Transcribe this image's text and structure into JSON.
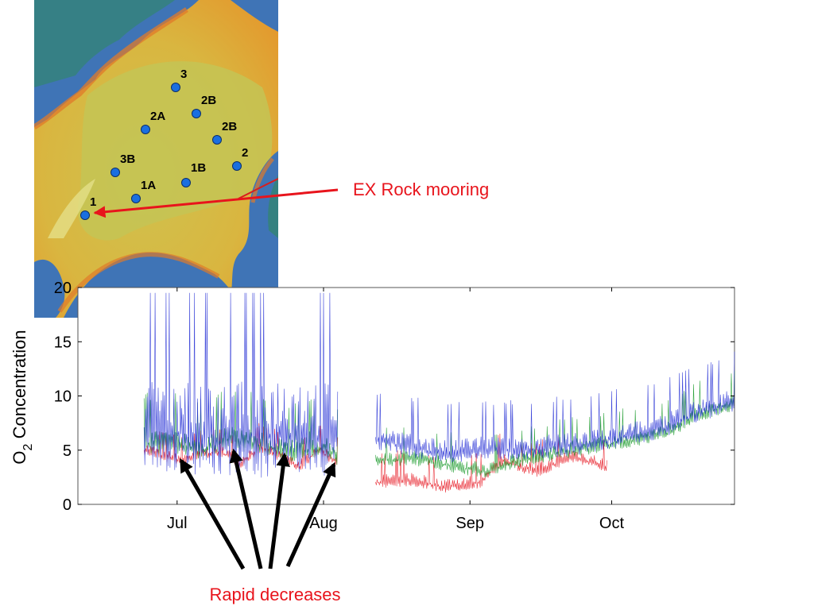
{
  "map": {
    "stations": [
      {
        "label": "3"
      },
      {
        "label": "2B"
      },
      {
        "label": "2A"
      },
      {
        "label": "2B"
      },
      {
        "label": "3B"
      },
      {
        "label": "1B"
      },
      {
        "label": "2"
      },
      {
        "label": "1A"
      },
      {
        "label": "1"
      }
    ],
    "colors": {
      "marker": "#1a6fe0",
      "land": "#3c6db8",
      "shallow": "#e6a233",
      "deep": "#c9c04a"
    }
  },
  "annotations": {
    "mooring_label": "EX Rock mooring",
    "decrease_label": "Rapid decreases",
    "colors": {
      "red_text": "#e8141c",
      "arrow": "#000000"
    }
  },
  "chart_data": {
    "type": "line",
    "title": "",
    "xlabel": "",
    "ylabel": "O",
    "ylabel_subscript": "2",
    "ylabel_rest": " Concentration",
    "ylim": [
      0,
      20
    ],
    "yticks": [
      0,
      5,
      10,
      15,
      20
    ],
    "xlim": [
      "Jun 10",
      "Oct 27"
    ],
    "xticks": [
      {
        "label": "Jul",
        "date": "Jul 1"
      },
      {
        "label": "Aug",
        "date": "Aug 1"
      },
      {
        "label": "Sep",
        "date": "Sep 1"
      },
      {
        "label": "Oct",
        "date": "Oct 1"
      }
    ],
    "gap": [
      "Aug 4",
      "Aug 12"
    ],
    "series": [
      {
        "color": "#2b35d6",
        "segments": [
          {
            "start": "Jun 24",
            "end": "Aug 4",
            "base": [
              [
                0,
                6.5
              ],
              [
                20,
                6.5
              ],
              [
                40,
                6.0
              ],
              [
                50,
                6.4
              ],
              [
                60,
                6.0
              ],
              [
                75,
                6.4
              ],
              [
                100,
                6.0
              ]
            ],
            "spikes": 12
          },
          {
            "start": "Aug 12",
            "end": "Oct 27",
            "base": [
              [
                0,
                6.0
              ],
              [
                10,
                5.2
              ],
              [
                20,
                4.6
              ],
              [
                30,
                5.0
              ],
              [
                40,
                5.0
              ],
              [
                50,
                5.2
              ],
              [
                60,
                5.6
              ],
              [
                70,
                6.2
              ],
              [
                80,
                7.0
              ],
              [
                90,
                8.5
              ],
              [
                100,
                9.4
              ]
            ],
            "spikes": 3
          }
        ]
      },
      {
        "color": "#1a9a2a",
        "segments": [
          {
            "start": "Jun 24",
            "end": "Aug 4",
            "base": [
              [
                0,
                5.5
              ],
              [
                15,
                5.6
              ],
              [
                30,
                5.0
              ],
              [
                45,
                6.0
              ],
              [
                60,
                5.4
              ],
              [
                75,
                4.8
              ],
              [
                90,
                5.2
              ],
              [
                100,
                4.5
              ]
            ],
            "spikes": 3
          },
          {
            "start": "Aug 12",
            "end": "Oct 27",
            "base": [
              [
                0,
                4.0
              ],
              [
                10,
                4.2
              ],
              [
                20,
                3.6
              ],
              [
                30,
                3.0
              ],
              [
                40,
                4.0
              ],
              [
                50,
                4.6
              ],
              [
                60,
                5.2
              ],
              [
                70,
                5.8
              ],
              [
                80,
                6.4
              ],
              [
                90,
                8.2
              ],
              [
                100,
                9.2
              ]
            ],
            "spikes": 2
          }
        ]
      },
      {
        "color": "#e8202a",
        "segments": [
          {
            "start": "Jun 24",
            "end": "Aug 4",
            "base": [
              [
                0,
                5.0
              ],
              [
                10,
                4.4
              ],
              [
                20,
                4.0
              ],
              [
                30,
                4.6
              ],
              [
                40,
                4.8
              ],
              [
                50,
                3.8
              ],
              [
                60,
                5.2
              ],
              [
                70,
                4.4
              ],
              [
                80,
                3.4
              ],
              [
                90,
                5.0
              ],
              [
                100,
                3.8
              ]
            ],
            "spikes": 1.5
          },
          {
            "start": "Aug 12",
            "end": "Sep 30",
            "base": [
              [
                0,
                2.0
              ],
              [
                15,
                2.2
              ],
              [
                30,
                1.6
              ],
              [
                45,
                2.0
              ],
              [
                55,
                4.0
              ],
              [
                70,
                3.0
              ],
              [
                85,
                4.4
              ],
              [
                100,
                3.4
              ]
            ],
            "spikes": 1.8
          }
        ]
      }
    ]
  }
}
